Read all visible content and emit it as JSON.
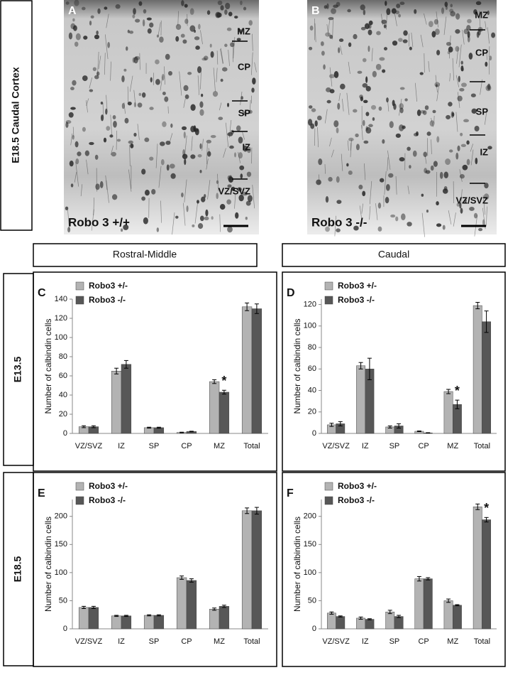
{
  "figure": {
    "side_label": "E18.5 Caudal Cortex",
    "images": [
      {
        "panel": "A",
        "genotype": "Robo 3 +/+",
        "layers": [
          "MZ",
          "CP",
          "SP",
          "IZ",
          "VZ/SVZ"
        ]
      },
      {
        "panel": "B",
        "genotype": "Robo 3 -/-",
        "layers": [
          "MZ",
          "CP",
          "SP",
          "IZ",
          "VZ/SVZ"
        ]
      }
    ],
    "column_headers": [
      "Rostral-Middle",
      "Caudal"
    ],
    "row_headers": [
      "E13.5",
      "E18.5"
    ]
  },
  "chart_data": [
    {
      "type": "bar",
      "label": "C",
      "ylabel": "Number of calbindin cells",
      "categories": [
        "VZ/SVZ",
        "IZ",
        "SP",
        "CP",
        "MZ",
        "Total"
      ],
      "series": [
        {
          "name": "Robo3 +/-",
          "color": "#b3b3b3",
          "values": [
            7,
            65,
            6,
            1,
            54,
            132
          ],
          "errors": [
            1,
            3,
            0.5,
            0.3,
            2,
            4
          ]
        },
        {
          "name": "Robo3 -/-",
          "color": "#575757",
          "values": [
            7,
            72,
            6,
            2,
            43,
            130
          ],
          "errors": [
            1,
            4,
            0.5,
            0.3,
            2,
            5
          ]
        }
      ],
      "ylim": [
        0,
        140
      ],
      "yticks": [
        0,
        20,
        40,
        60,
        80,
        100,
        120,
        140
      ],
      "annotation": "*"
    },
    {
      "type": "bar",
      "label": "D",
      "ylabel": "Number of calbindin cells",
      "categories": [
        "VZ/SVZ",
        "IZ",
        "SP",
        "CP",
        "MZ",
        "Total"
      ],
      "series": [
        {
          "name": "Robo3 +/-",
          "color": "#b3b3b3",
          "values": [
            8,
            63,
            6,
            2,
            39,
            119
          ],
          "errors": [
            1.5,
            3,
            1,
            0.3,
            2,
            3
          ]
        },
        {
          "name": "Robo3 -/-",
          "color": "#575757",
          "values": [
            9,
            60,
            7,
            0.5,
            27,
            104
          ],
          "errors": [
            2,
            10,
            2,
            0.2,
            4,
            10
          ]
        }
      ],
      "ylim": [
        0,
        125
      ],
      "yticks": [
        0,
        20,
        40,
        60,
        80,
        100,
        120
      ],
      "annotation": "*"
    },
    {
      "type": "bar",
      "label": "E",
      "ylabel": "Number of calbindin cells",
      "categories": [
        "VZ/SVZ",
        "IZ",
        "SP",
        "CP",
        "MZ",
        "Total"
      ],
      "series": [
        {
          "name": "Robo3 +/-",
          "color": "#b3b3b3",
          "values": [
            38,
            23,
            24,
            91,
            35,
            210
          ],
          "errors": [
            2,
            1,
            1,
            3,
            2,
            5
          ]
        },
        {
          "name": "Robo3 -/-",
          "color": "#575757",
          "values": [
            38,
            23,
            24,
            86,
            40,
            210
          ],
          "errors": [
            2,
            1,
            1,
            3,
            2,
            6
          ]
        }
      ],
      "ylim": [
        0,
        230
      ],
      "yticks": [
        0,
        50,
        100,
        150,
        200
      ]
    },
    {
      "type": "bar",
      "label": "F",
      "ylabel": "Number of calbindin cells",
      "categories": [
        "VZ/SVZ",
        "IZ",
        "SP",
        "CP",
        "MZ",
        "Total"
      ],
      "series": [
        {
          "name": "Robo3 +/-",
          "color": "#b3b3b3",
          "values": [
            28,
            19,
            30,
            89,
            50,
            217
          ],
          "errors": [
            2,
            2,
            3,
            4,
            3,
            5
          ]
        },
        {
          "name": "Robo3 -/-",
          "color": "#575757",
          "values": [
            22,
            17,
            22,
            89,
            42,
            194
          ],
          "errors": [
            1,
            1,
            2,
            2,
            1,
            4
          ]
        }
      ],
      "ylim": [
        0,
        230
      ],
      "yticks": [
        0,
        50,
        100,
        150,
        200
      ],
      "annotation": "*"
    }
  ]
}
